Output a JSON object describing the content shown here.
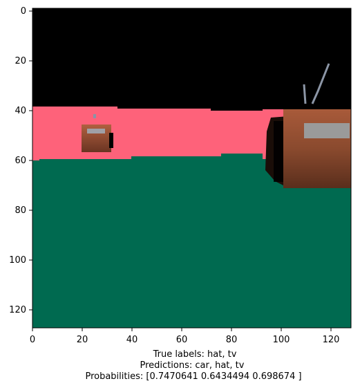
{
  "plot": {
    "x_ticks": [
      "0",
      "20",
      "40",
      "60",
      "80",
      "100",
      "120"
    ],
    "y_ticks": [
      "0",
      "20",
      "40",
      "60",
      "80",
      "100",
      "120"
    ]
  },
  "caption": {
    "true_labels": "True labels: hat, tv",
    "predictions": "Predictions: car, hat, tv",
    "probabilities": "Probabilities: [0.7470641 0.6434494 0.698674 ]"
  },
  "colors": {
    "sky": "#000000",
    "wall": "#fe627a",
    "floor": "#006a50",
    "tv_body": "#8a4a2e",
    "screen": "#9a9a9a"
  }
}
